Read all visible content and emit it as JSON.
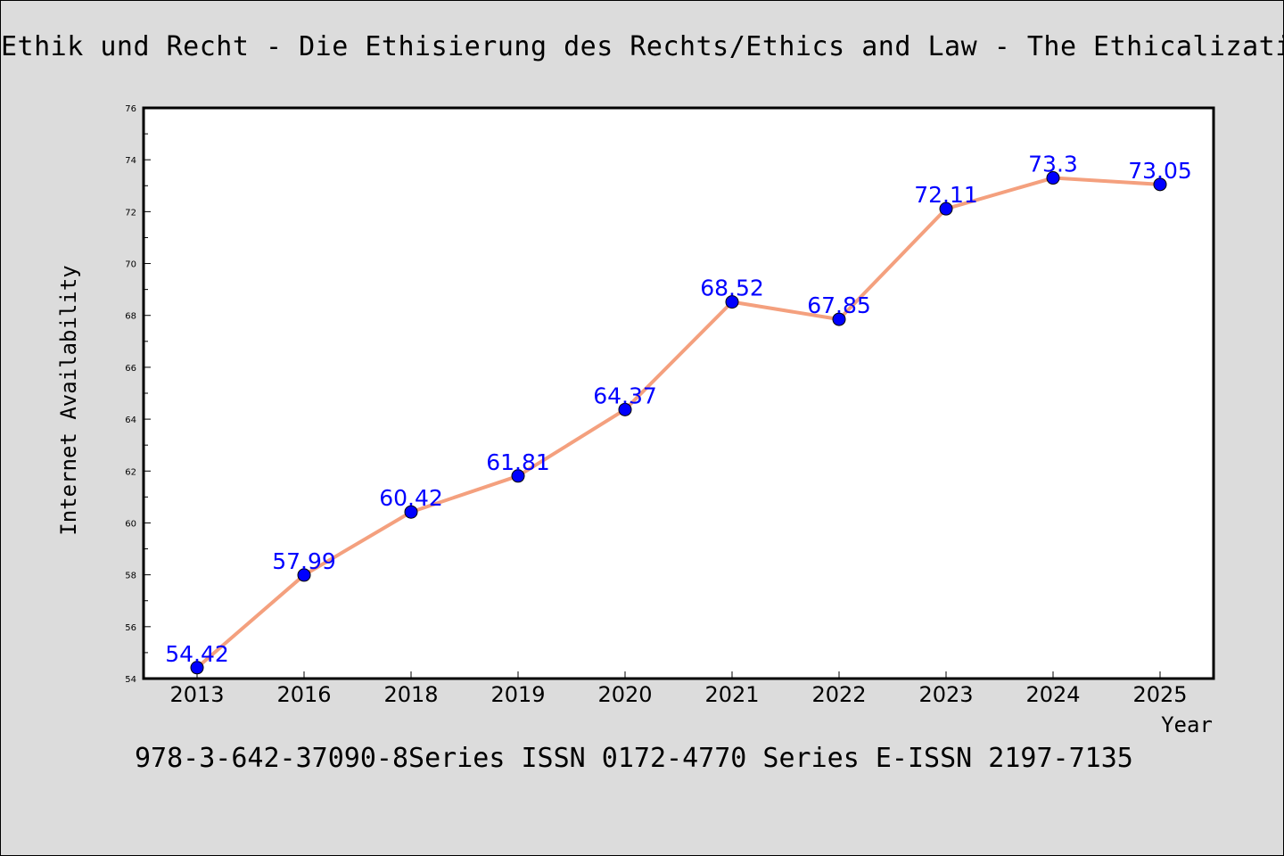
{
  "footer": "978-3-642-37090-8Series ISSN 0172-4770 Series E-ISSN 2197-7135",
  "chart_data": {
    "type": "line",
    "title": "Ethik und Recht - Die Ethisierung des Rechts/Ethics and Law - The Ethicalization",
    "xlabel": "Year",
    "ylabel": "Internet Availability",
    "categories": [
      "2013",
      "2016",
      "2018",
      "2019",
      "2020",
      "2021",
      "2022",
      "2023",
      "2024",
      "2025"
    ],
    "values": [
      54.42,
      57.99,
      60.42,
      61.81,
      64.37,
      68.52,
      67.85,
      72.11,
      73.3,
      73.05
    ],
    "data_labels": [
      "54.42",
      "57.99",
      "60.42",
      "61.81",
      "64.37",
      "68.52",
      "67.85",
      "72.11",
      "73.3",
      "73.05"
    ],
    "ylim": [
      54,
      76
    ],
    "yticks": [
      54,
      56,
      58,
      60,
      62,
      64,
      66,
      68,
      70,
      72,
      74,
      76
    ],
    "grid": false,
    "legend": "none",
    "colors": {
      "line": "#f4a07e",
      "marker": "#0000ff",
      "label": "#0000ff",
      "frame": "#000000",
      "plot_bg": "#ffffff"
    }
  }
}
